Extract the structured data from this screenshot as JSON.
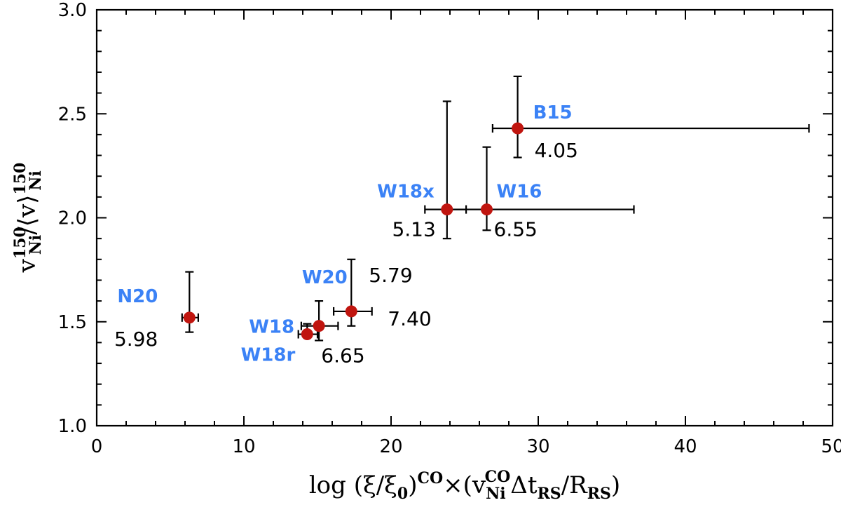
{
  "chart_data": {
    "type": "scatter",
    "title": "",
    "xlim": [
      0,
      50
    ],
    "ylim": [
      1.0,
      3.0
    ],
    "xticks": [
      0,
      10,
      20,
      30,
      40,
      50
    ],
    "yticks": [
      1.0,
      1.5,
      2.0,
      2.5,
      3.0
    ],
    "xtick_labels": [
      "0",
      "10",
      "20",
      "30",
      "40",
      "50"
    ],
    "ytick_labels": [
      "1.0",
      "1.5",
      "2.0",
      "2.5",
      "3.0"
    ],
    "xlabel": {
      "prefix": "log (ξ/ξ",
      "sub0": "0",
      "mid": ")",
      "sup_co": "CO",
      "times": "×(v",
      "sub_ni": "Ni",
      "sup_co2": "CO",
      "dt": "Δt",
      "sub_rs": "RS",
      "slash": "/R",
      "sub_rs2": "RS",
      "end": ")"
    },
    "ylabel": {
      "v": "v",
      "sup150": "150",
      "subNi": "Ni",
      "mid": "/⟨v⟩",
      "sup150b": "150",
      "subNib": "Ni"
    },
    "marker_color": "#c0150f",
    "name_color": "#3b82f6",
    "points": [
      {
        "name": "N20",
        "value_label": "5.98",
        "x": 6.3,
        "y": 1.52,
        "xerr": [
          5.8,
          6.9
        ],
        "yerr": [
          1.45,
          1.74
        ]
      },
      {
        "name": "W18",
        "value_label": "",
        "x": 15.1,
        "y": 1.48,
        "xerr": [
          13.9,
          16.4
        ],
        "yerr": [
          1.41,
          1.6
        ]
      },
      {
        "name": "W18r",
        "value_label": "6.65",
        "x": 14.3,
        "y": 1.44,
        "xerr": [
          13.7,
          15.0
        ],
        "yerr": [
          1.43,
          1.49
        ]
      },
      {
        "name": "W20",
        "value_label": "5.79",
        "x": 17.3,
        "y": 1.55,
        "xerr": [
          16.1,
          18.7
        ],
        "yerr": [
          1.48,
          1.8
        ]
      },
      {
        "name": "",
        "value_label": "7.40",
        "x": 17.3,
        "y": 1.55,
        "xerr": null,
        "yerr": null
      },
      {
        "name": "W18x",
        "value_label": "5.13",
        "x": 23.8,
        "y": 2.04,
        "xerr": [
          22.3,
          25.1
        ],
        "yerr": [
          1.9,
          2.56
        ]
      },
      {
        "name": "W16",
        "value_label": "6.55",
        "x": 26.5,
        "y": 2.04,
        "xerr": [
          23.8,
          36.5
        ],
        "yerr": [
          1.94,
          2.34
        ]
      },
      {
        "name": "B15",
        "value_label": "4.05",
        "x": 28.6,
        "y": 2.43,
        "xerr": [
          26.9,
          48.4
        ],
        "yerr": [
          2.29,
          2.68
        ]
      }
    ]
  }
}
